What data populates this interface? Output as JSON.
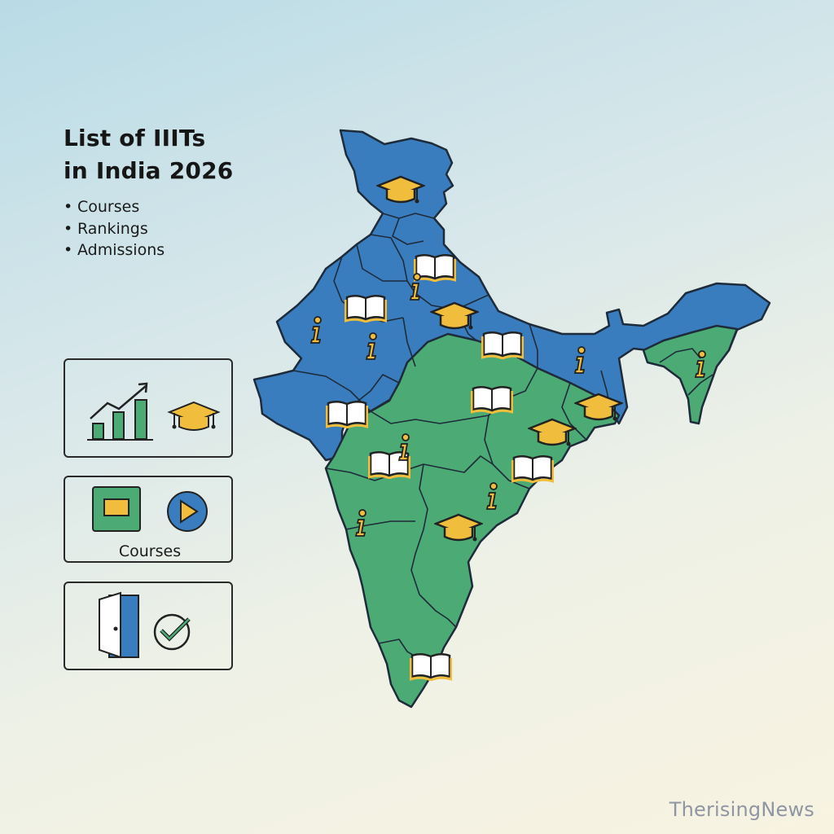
{
  "header": {
    "title_line1": "List of IIITs",
    "title_line2": "in India 2026"
  },
  "bullets": [
    "Courses",
    "Rankings",
    "Admissions"
  ],
  "cards": {
    "courses_label": "Courses"
  },
  "watermark": "TherisingNews",
  "colors": {
    "north_region": "#3a7dbf",
    "south_region": "#4caa74",
    "icon_gold": "#f0be3c",
    "outline": "#1e2b3a"
  },
  "map_icons": [
    "graduation-cap-icon",
    "book-icon",
    "info-icon"
  ]
}
